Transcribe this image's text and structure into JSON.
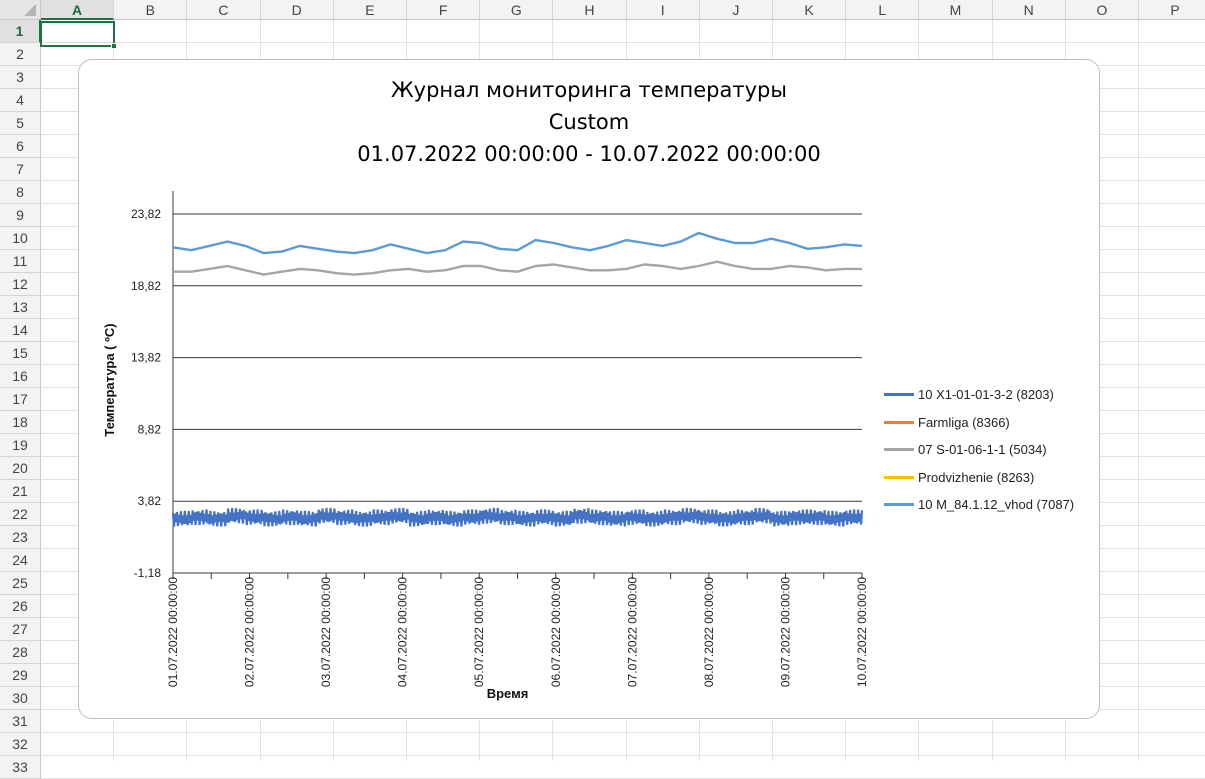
{
  "spreadsheet": {
    "columns": [
      "A",
      "B",
      "C",
      "D",
      "E",
      "F",
      "G",
      "H",
      "I",
      "J",
      "K",
      "L",
      "M",
      "N",
      "O",
      "P"
    ],
    "rows": [
      "1",
      "2",
      "3",
      "4",
      "5",
      "6",
      "7",
      "8",
      "9",
      "10",
      "11",
      "12",
      "13",
      "14",
      "15",
      "16",
      "17",
      "18",
      "19",
      "20",
      "21",
      "22",
      "23",
      "24",
      "25",
      "26",
      "27",
      "28",
      "29",
      "30",
      "31",
      "32",
      "33"
    ],
    "active_cell": "A1",
    "accent_color": "#1e7145"
  },
  "chart_data": {
    "type": "line",
    "title": [
      "Журнал мониторинга температуры",
      "Custom",
      "01.07.2022 00:00:00 - 10.07.2022 00:00:00"
    ],
    "xlabel": "Время",
    "ylabel": "Температура ( ºС)",
    "x_ticks": [
      "01.07.2022 00:00:00",
      "02.07.2022 00:00:00",
      "03.07.2022 00:00:00",
      "04.07.2022 00:00:00",
      "05.07.2022 00:00:00",
      "06.07.2022 00:00:00",
      "07.07.2022 00:00:00",
      "08.07.2022 00:00:00",
      "09.07.2022 00:00:00",
      "10.07.2022 00:00:00"
    ],
    "y_ticks": [
      "23,82",
      "18,82",
      "13,82",
      "8,82",
      "3,82",
      "-1,18"
    ],
    "ylim": [
      -1.18,
      23.82
    ],
    "y_tick_values": [
      23.82,
      18.82,
      13.82,
      8.82,
      3.82,
      -1.18
    ],
    "grid": true,
    "legend_position": "right",
    "series": [
      {
        "name": "10 X1-01-01-3-2 (8203)",
        "color": "#4472c4",
        "values": [
          2.6,
          2.7,
          2.6,
          2.8,
          2.7,
          2.6,
          2.7,
          2.6,
          2.8,
          2.7,
          2.6,
          2.7,
          2.8,
          2.6,
          2.7,
          2.6,
          2.7,
          2.8,
          2.7,
          2.6,
          2.7,
          2.6,
          2.8,
          2.7,
          2.6,
          2.7,
          2.6,
          2.7,
          2.8,
          2.7,
          2.6,
          2.7,
          2.8,
          2.6,
          2.7,
          2.7,
          2.6,
          2.7,
          2.7
        ]
      },
      {
        "name": "Farmliga (8366)",
        "color": "#ed7d31",
        "values": []
      },
      {
        "name": "07 S-01-06-1-1 (5034)",
        "color": "#a5a5a5",
        "values": [
          19.8,
          19.8,
          20.0,
          20.2,
          19.9,
          19.6,
          19.8,
          20.0,
          19.9,
          19.7,
          19.6,
          19.7,
          19.9,
          20.0,
          19.8,
          19.9,
          20.2,
          20.2,
          19.9,
          19.8,
          20.2,
          20.3,
          20.1,
          19.9,
          19.9,
          20.0,
          20.3,
          20.2,
          20.0,
          20.2,
          20.5,
          20.2,
          20.0,
          20.0,
          20.2,
          20.1,
          19.9,
          20.0,
          20.0
        ]
      },
      {
        "name": "Prodvizhenie (8263)",
        "color": "#ffc000",
        "values": []
      },
      {
        "name": "10 M_84.1.12_vhod (7087)",
        "color": "#5b9bd5",
        "values": [
          21.5,
          21.3,
          21.6,
          21.9,
          21.6,
          21.1,
          21.2,
          21.6,
          21.4,
          21.2,
          21.1,
          21.3,
          21.7,
          21.4,
          21.1,
          21.3,
          21.9,
          21.8,
          21.4,
          21.3,
          22.0,
          21.8,
          21.5,
          21.3,
          21.6,
          22.0,
          21.8,
          21.6,
          21.9,
          22.5,
          22.1,
          21.8,
          21.8,
          22.1,
          21.8,
          21.4,
          21.5,
          21.7,
          21.6
        ]
      }
    ]
  }
}
